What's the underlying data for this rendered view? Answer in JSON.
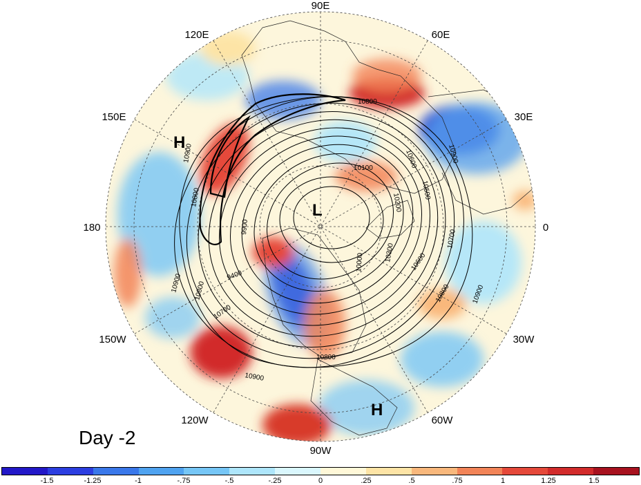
{
  "map": {
    "lon_labels": {
      "e90": "90E",
      "e60": "60E",
      "e30": "30E",
      "zero": "0",
      "w30": "30W",
      "w60": "60W",
      "w90": "90W",
      "w120": "120W",
      "w150": "150W",
      "d180": "180",
      "e150": "150E",
      "e120": "120E"
    },
    "centers": [
      {
        "id": "high-150e",
        "label": "H"
      },
      {
        "id": "low-pole",
        "label": "L"
      },
      {
        "id": "high-60w",
        "label": "H"
      }
    ],
    "contour_labels": {
      "c1": "10800",
      "c2": "10600",
      "c3": "10900",
      "c4": "10100",
      "c5": "10200",
      "c6": "10500",
      "c7": "10900",
      "c8": "10800",
      "c9": "9900",
      "c10": "10300",
      "c11": "10000",
      "c12": "10700",
      "c13": "10600",
      "c14": "10800",
      "c15": "10900",
      "c16": "9400",
      "c17": "10900",
      "c18": "10800",
      "c19": "10700",
      "c20": "10800",
      "c21": "10900"
    },
    "colors": {
      "ocean_base": "#fdf6dc",
      "positive_strong": "#d83a2c",
      "negative_strong": "#2a3fd0"
    }
  },
  "title": {
    "day": "Day -2"
  },
  "colorbar": {
    "colors": [
      "#2318c8",
      "#2c3ee0",
      "#3a78ea",
      "#4fa3f0",
      "#76c6f6",
      "#aee6fb",
      "#daf7fd",
      "#fff8d8",
      "#fde4a6",
      "#f9b87c",
      "#f28458",
      "#e5493a",
      "#d22b2b",
      "#a8121f"
    ],
    "tick_labels": [
      "-1.5",
      "-1.25",
      "-1",
      "-.75",
      "-.5",
      "-.25",
      "0",
      ".25",
      ".5",
      ".75",
      "1",
      "1.25",
      "1.5"
    ]
  }
}
